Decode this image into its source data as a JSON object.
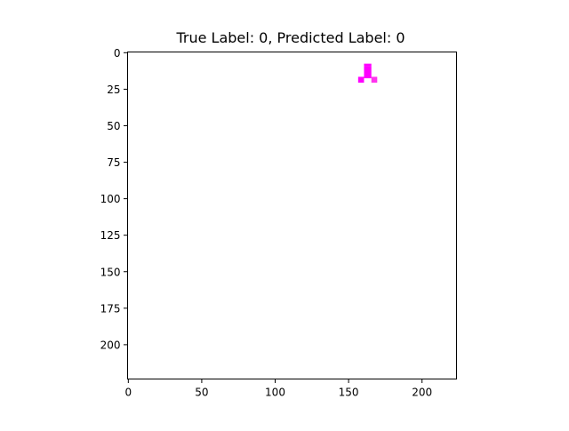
{
  "chart_data": {
    "type": "heatmap",
    "title": "True Label: 0, Predicted Label: 0",
    "xlabel": "",
    "ylabel": "",
    "image_width": 224,
    "image_height": 224,
    "xlim": [
      -0.5,
      223.5
    ],
    "ylim": [
      223.5,
      -0.5
    ],
    "grid": false,
    "x_ticks": [
      {
        "value": 0,
        "label": "0"
      },
      {
        "value": 50,
        "label": "50"
      },
      {
        "value": 100,
        "label": "100"
      },
      {
        "value": 150,
        "label": "150"
      },
      {
        "value": 200,
        "label": "200"
      }
    ],
    "y_ticks": [
      {
        "value": 0,
        "label": "0"
      },
      {
        "value": 25,
        "label": "25"
      },
      {
        "value": 50,
        "label": "50"
      },
      {
        "value": 75,
        "label": "75"
      },
      {
        "value": 100,
        "label": "100"
      },
      {
        "value": 125,
        "label": "125"
      },
      {
        "value": 150,
        "label": "150"
      },
      {
        "value": 175,
        "label": "175"
      },
      {
        "value": 200,
        "label": "200"
      }
    ],
    "background_color": "#ffffff",
    "pixels": [
      {
        "x": 161,
        "y": 8,
        "w": 5,
        "h": 2,
        "color": "#ff00ff"
      },
      {
        "x": 161,
        "y": 10,
        "w": 5,
        "h": 8,
        "color": "#ff00ff"
      },
      {
        "x": 157,
        "y": 17,
        "w": 4,
        "h": 4,
        "color": "#ff00ff"
      },
      {
        "x": 166,
        "y": 17,
        "w": 4,
        "h": 4,
        "color": "#ff33ee"
      }
    ]
  }
}
